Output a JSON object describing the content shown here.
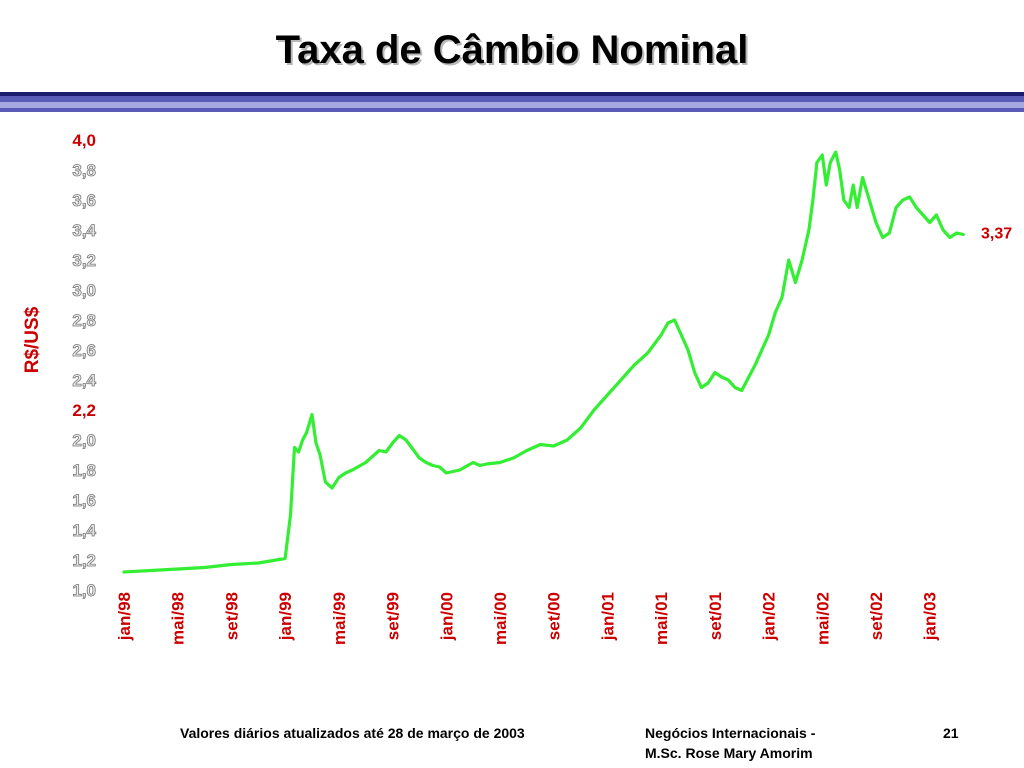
{
  "slide": {
    "title": "Taxa de Câmbio Nominal",
    "footer_left": "Valores diários atualizados até 28 de março de 2003",
    "footer_mid_line1": "Negócios Internacionais -",
    "footer_mid_line2": "M.Sc. Rose Mary Amorim",
    "page_number": "21"
  },
  "colors": {
    "line": "#33ee33",
    "highlight_label": "#cc0000",
    "tick_fill": "#eeeeee",
    "tick_outline": "#777777",
    "rule_dark": "#1a1a6e",
    "rule_mid": "#5a5ab8",
    "rule_light": "#a8a8e0"
  },
  "chart_data": {
    "type": "line",
    "title": "",
    "ylabel": "R$/US$",
    "ylim": [
      1.0,
      4.0
    ],
    "y_ticks": [
      "4,0",
      "3,8",
      "3,6",
      "3,4",
      "3,2",
      "3,0",
      "2,8",
      "2,6",
      "2,4",
      "2,2",
      "2,0",
      "1,8",
      "1,6",
      "1,4",
      "1,2",
      "1,0"
    ],
    "y_tick_values": [
      4.0,
      3.8,
      3.6,
      3.4,
      3.2,
      3.0,
      2.8,
      2.6,
      2.4,
      2.2,
      2.0,
      1.8,
      1.6,
      1.4,
      1.2,
      1.0
    ],
    "highlighted_y_ticks": [
      "4,0",
      "2,2"
    ],
    "x_ticks": [
      "jan/98",
      "mai/98",
      "set/98",
      "jan/99",
      "mai/99",
      "set/99",
      "jan/00",
      "mai/00",
      "set/00",
      "jan/01",
      "mai/01",
      "set/01",
      "jan/02",
      "mai/02",
      "set/02",
      "jan/03"
    ],
    "x_range_months": [
      0,
      63
    ],
    "last_value_label": "3,37",
    "last_value": 3.37,
    "series": [
      {
        "x": [
          0,
          2,
          4,
          6,
          8,
          10,
          12,
          12.4,
          12.7,
          13,
          13.3,
          13.6,
          14,
          14.3,
          14.6,
          15,
          15.5,
          16,
          16.5,
          17,
          18,
          19,
          19.5,
          20,
          20.5,
          21,
          22,
          22.5,
          23,
          23.5,
          24,
          25,
          26,
          26.5,
          27,
          28,
          29,
          30,
          31,
          32,
          33,
          34,
          35,
          36,
          37,
          38,
          39,
          40,
          40.5,
          41,
          41.5,
          42,
          42.5,
          43,
          43.5,
          44,
          44.5,
          45,
          45.5,
          46,
          47,
          48,
          48.5,
          49,
          49.5,
          50,
          50.5,
          51,
          51.3,
          51.6,
          52,
          52.3,
          52.6,
          53,
          53.3,
          53.6,
          54,
          54.3,
          54.6,
          55,
          55.5,
          56,
          56.5,
          57,
          57.5,
          58,
          58.5,
          59,
          59.5,
          60,
          60.5,
          61,
          61.5,
          62,
          62.5
        ],
        "y": [
          1.12,
          1.13,
          1.14,
          1.15,
          1.17,
          1.18,
          1.21,
          1.5,
          1.95,
          1.92,
          2.0,
          2.05,
          2.17,
          1.98,
          1.9,
          1.72,
          1.68,
          1.75,
          1.78,
          1.8,
          1.85,
          1.93,
          1.92,
          1.98,
          2.03,
          2.0,
          1.88,
          1.85,
          1.83,
          1.82,
          1.78,
          1.8,
          1.85,
          1.83,
          1.84,
          1.85,
          1.88,
          1.93,
          1.97,
          1.96,
          2.0,
          2.08,
          2.2,
          2.3,
          2.4,
          2.5,
          2.58,
          2.7,
          2.78,
          2.8,
          2.7,
          2.6,
          2.45,
          2.35,
          2.38,
          2.45,
          2.42,
          2.4,
          2.35,
          2.33,
          2.5,
          2.7,
          2.85,
          2.95,
          3.2,
          3.05,
          3.2,
          3.4,
          3.6,
          3.85,
          3.9,
          3.7,
          3.85,
          3.92,
          3.8,
          3.6,
          3.55,
          3.7,
          3.55,
          3.75,
          3.6,
          3.45,
          3.35,
          3.38,
          3.55,
          3.6,
          3.62,
          3.55,
          3.5,
          3.45,
          3.5,
          3.4,
          3.35,
          3.38,
          3.37
        ]
      }
    ]
  }
}
